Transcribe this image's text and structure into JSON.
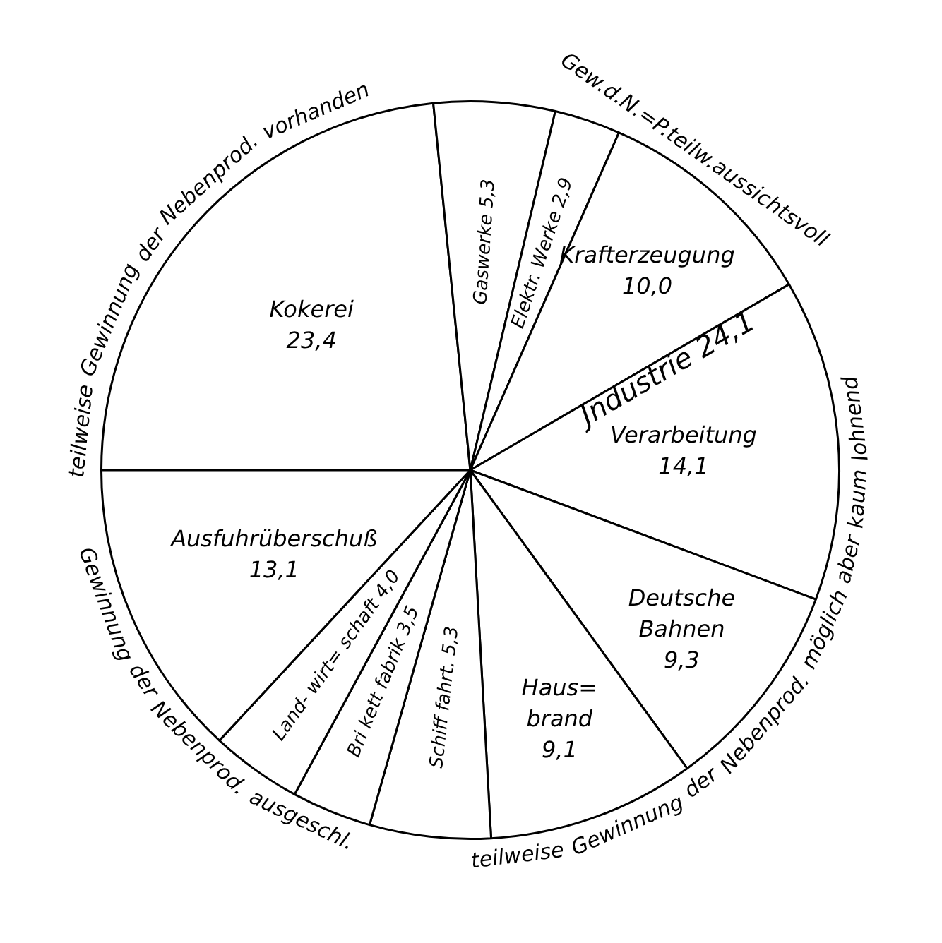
{
  "chart_data": {
    "type": "pie",
    "categories": [
      "Kokerei",
      "Gaswerke",
      "Elektr.\nWerke",
      "Krafterzeugung",
      "Verarbeitung",
      "Deutsche\nBahnen",
      "Haus=\nbrand",
      "Schiff\nfahrt.",
      "Bri\nkett\nfabrik",
      "Land-\nwirt=\nschaft",
      "Ausfuhrüberschuß"
    ],
    "values": [
      23.4,
      5.3,
      2.9,
      10.0,
      14.1,
      9.3,
      9.1,
      5.3,
      3.5,
      4.0,
      13.1
    ],
    "value_labels": [
      "23,4",
      "5,3",
      "2,9",
      "10,0",
      "14,1",
      "9,3",
      "9,1",
      "5,3",
      "3,5",
      "4,0",
      "13,1"
    ],
    "colors": [
      "#ffffff",
      "#ffffff",
      "#ffffff",
      "#ffffff",
      "#ffffff",
      "#ffffff",
      "#ffffff",
      "#ffffff",
      "#ffffff",
      "#ffffff",
      "#ffffff"
    ],
    "legend": false,
    "annotations": [
      "teilweise Gewinnung der Nebenprod. vorhanden",
      "Gew.d.N.=P.teilw.aussichtsvoll",
      "teilweise Gewinnung der Nebenprod. möglich aber kaum lohnend",
      "Gewinnung der Nebenprod. ausgeschl.",
      "Jndustrie 24,1"
    ]
  }
}
